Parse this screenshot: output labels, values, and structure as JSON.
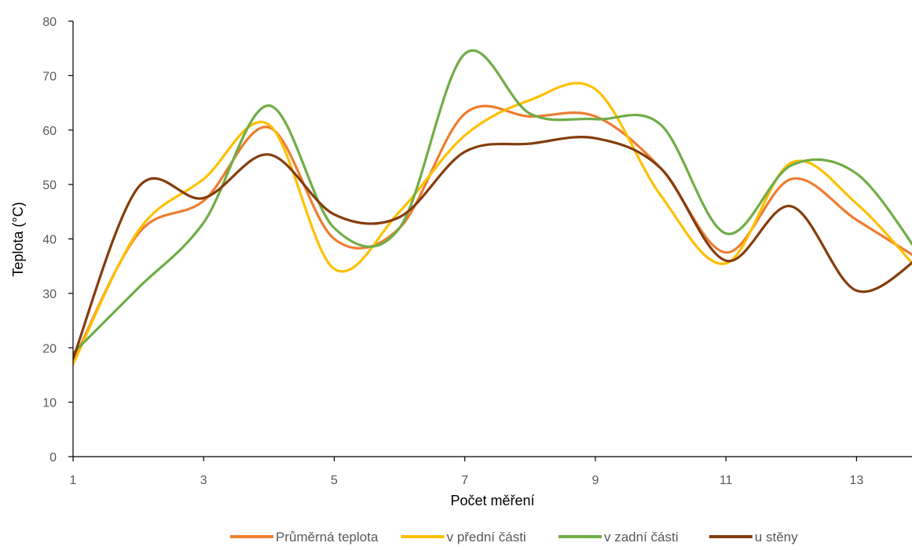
{
  "chart_data": {
    "type": "line",
    "title": "",
    "xlabel": "Počet měření",
    "ylabel": "Teplota  (°C)",
    "xlim": [
      1,
      13.85
    ],
    "ylim": [
      0,
      80
    ],
    "xticks": [
      1,
      3,
      5,
      7,
      9,
      11,
      13
    ],
    "yticks": [
      0,
      10,
      20,
      30,
      40,
      50,
      60,
      70,
      80
    ],
    "grid": false,
    "smooth": true,
    "legend": "bottom",
    "x": [
      1,
      2,
      3,
      4,
      5,
      6,
      7,
      8,
      9,
      10,
      11,
      12,
      13,
      14
    ],
    "series": [
      {
        "name": "Průměrná teplota",
        "color": "#ED7D31",
        "values": [
          17.5,
          41,
          47,
          60.5,
          40,
          42,
          63,
          62.5,
          62.5,
          53,
          37.5,
          51,
          43.5,
          36
        ]
      },
      {
        "name": "v přední části",
        "color": "#FFC000",
        "values": [
          17,
          41.5,
          51,
          61,
          34.5,
          45,
          59,
          65.5,
          67.5,
          48,
          35.5,
          54,
          46.5,
          33.5
        ]
      },
      {
        "name": "v zadní části",
        "color": "#70AD47",
        "values": [
          19,
          31,
          43,
          64.5,
          42,
          42,
          74,
          63,
          62,
          61,
          41,
          53.5,
          52,
          36.5
        ]
      },
      {
        "name": "u stěny",
        "color": "#843C0C",
        "values": [
          18,
          49.5,
          47.5,
          55.5,
          44.5,
          44,
          56,
          57.5,
          58.5,
          53,
          36,
          46,
          30.5,
          37
        ]
      }
    ]
  }
}
